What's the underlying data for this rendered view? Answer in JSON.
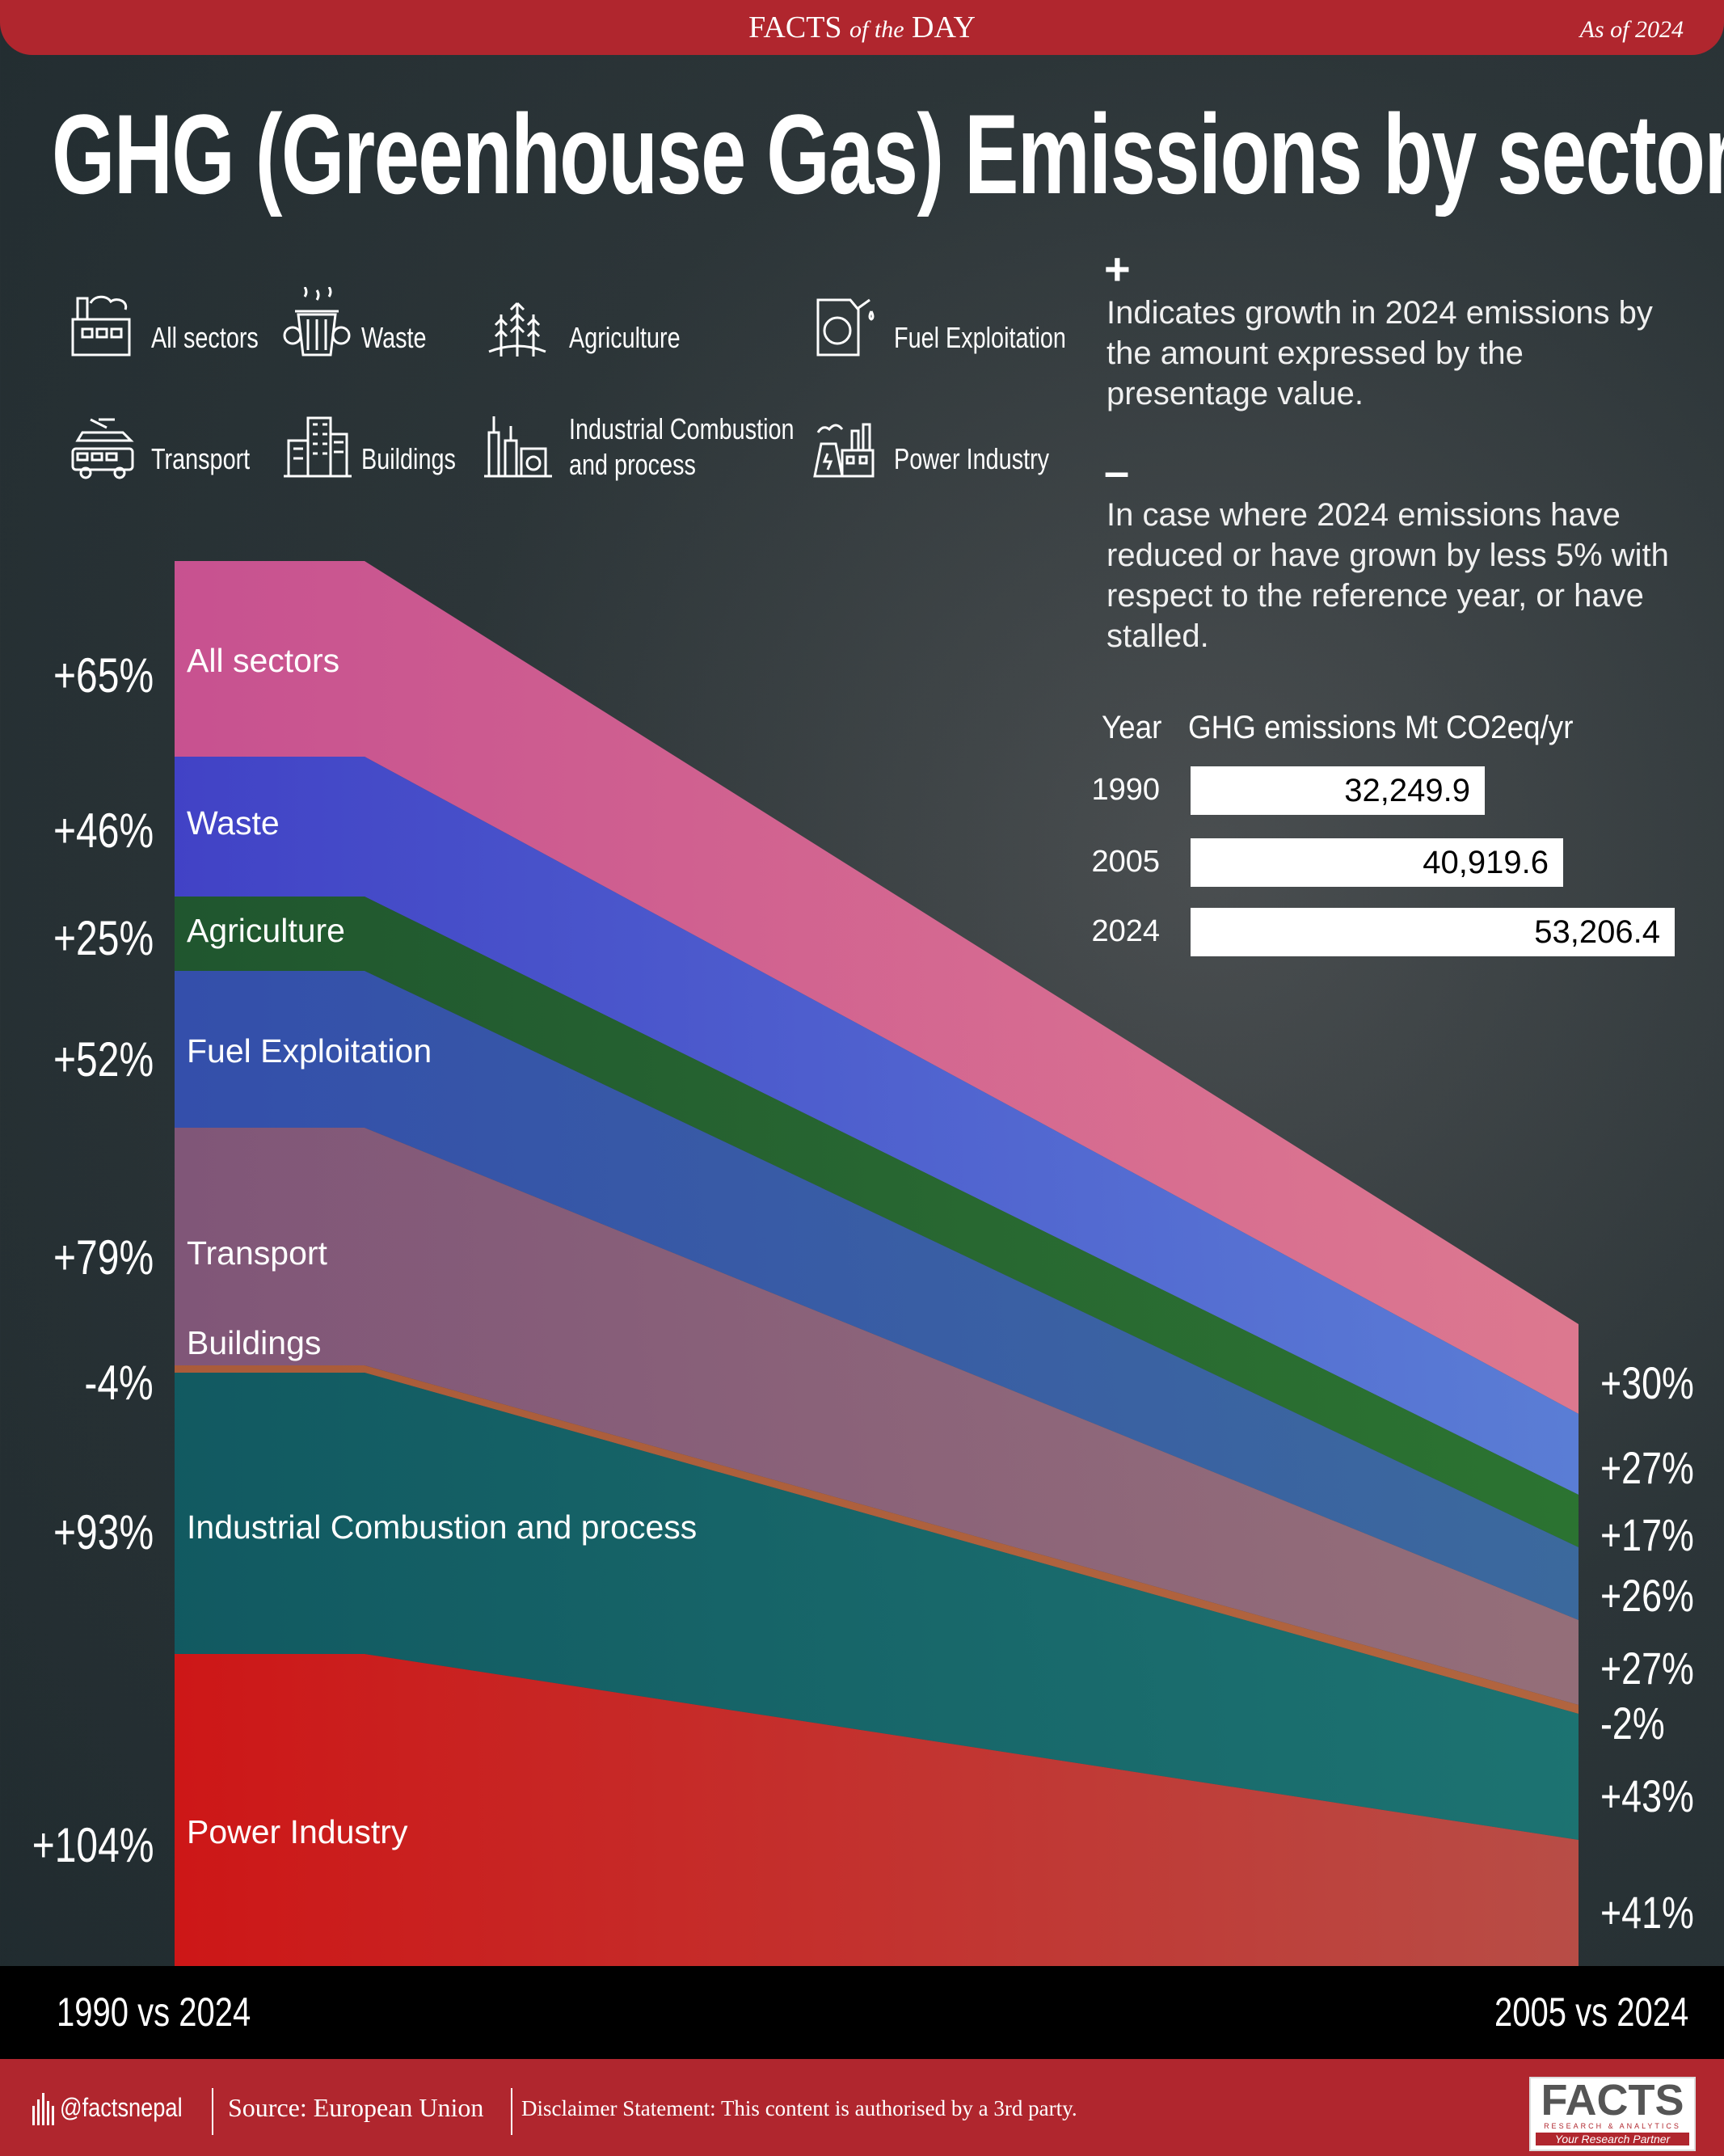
{
  "header": {
    "brand": "FACTS",
    "brand_mid": "of the",
    "brand_end": "DAY",
    "as_of": "As of 2024"
  },
  "title": "GHG (Greenhouse Gas) Emissions by sector",
  "legend": [
    {
      "label": "All sectors",
      "icon": "factory-icon"
    },
    {
      "label": "Waste",
      "icon": "trash-bin-icon"
    },
    {
      "label": "Agriculture",
      "icon": "wheat-icon"
    },
    {
      "label": "Fuel Exploitation",
      "icon": "fuel-can-icon"
    },
    {
      "label": "Transport",
      "icon": "vehicles-icon"
    },
    {
      "label": "Buildings",
      "icon": "buildings-icon"
    },
    {
      "label": "Industrial Combustion",
      "label2": "and process",
      "icon": "industrial-plant-icon"
    },
    {
      "label": "Power Industry",
      "icon": "power-plant-icon"
    }
  ],
  "notes": {
    "plus_sign": "+",
    "plus_text": "Indicates growth in 2024 emissions by the amount expressed by the presentage value.",
    "minus_sign": "–",
    "minus_text": "In case where 2024 emissions have reduced or have grown by less 5% with respect to the reference year, or have stalled."
  },
  "table": {
    "col_year": "Year",
    "col_value": "GHG emissions Mt CO2eq/yr",
    "rows": [
      {
        "year": "1990",
        "value": "32,249.9"
      },
      {
        "year": "2005",
        "value": "40,919.6"
      },
      {
        "year": "2024",
        "value": "53,206.4"
      }
    ]
  },
  "chart_data": {
    "type": "area",
    "left_axis_label": "1990 vs 2024",
    "right_axis_label": "2005 vs 2024",
    "series": [
      {
        "name": "All sectors",
        "change_1990_2024": "+65%",
        "change_2005_2024": "+30%",
        "color": "#d9559a"
      },
      {
        "name": "Waste",
        "change_1990_2024": "+46%",
        "change_2005_2024": "+27%",
        "color": "#4444d6"
      },
      {
        "name": "Agriculture",
        "change_1990_2024": "+25%",
        "change_2005_2024": "+17%",
        "color": "#1f5a2e"
      },
      {
        "name": "Fuel Exploitation",
        "change_1990_2024": "+52%",
        "change_2005_2024": "+26%",
        "color": "#3552b8"
      },
      {
        "name": "Transport",
        "change_1990_2024": "+79%",
        "change_2005_2024": "+27%",
        "color": "#8a5a80"
      },
      {
        "name": "Buildings",
        "change_1990_2024": "-4%",
        "change_2005_2024": "-2%",
        "color": "#b8603a"
      },
      {
        "name": "Industrial Combustion and process",
        "change_1990_2024": "+93%",
        "change_2005_2024": "+43%",
        "color": "#0f5e66"
      },
      {
        "name": "Power Industry",
        "change_1990_2024": "+104%",
        "change_2005_2024": "+41%",
        "color": "#e01414"
      }
    ]
  },
  "footer": {
    "handle": "@factsnepal",
    "source": "Source: European Union",
    "disclaimer": "Disclaimer Statement: This content is authorised by a 3rd party.",
    "logo_text": "FACTS",
    "logo_sub": "RESEARCH & ANALYTICS",
    "logo_tag": "Your Research Partner"
  }
}
